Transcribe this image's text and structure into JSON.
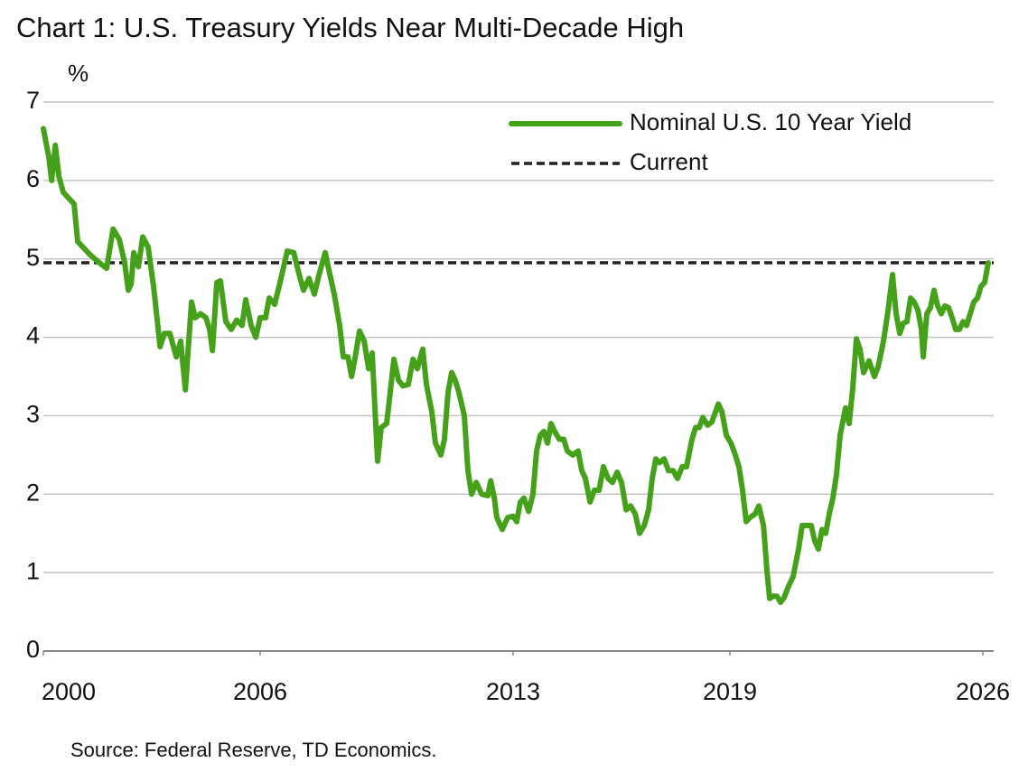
{
  "chart_data": {
    "type": "line",
    "title": "Chart 1: U.S. Treasury Yields Near Multi-Decade High",
    "y_label": "%",
    "source": "Source: Federal Reserve, TD Economics.",
    "xlim": [
      2000,
      2026.3
    ],
    "xticks": [
      2000,
      2006,
      2013,
      2019,
      2026
    ],
    "ylim": [
      0,
      7
    ],
    "yticks": [
      0,
      1,
      2,
      3,
      4,
      5,
      6,
      7
    ],
    "grid": true,
    "legend": "upper right",
    "series": [
      {
        "name": "Nominal U.S. 10 Year Yield",
        "color": "#45a01a",
        "x": [
          2000.0,
          2000.15,
          2000.23,
          2000.33,
          2000.43,
          2000.55,
          2000.75,
          2000.85,
          2000.95,
          2001.3,
          2001.55,
          2001.75,
          2001.93,
          2002.1,
          2002.25,
          2002.35,
          2002.43,
          2002.5,
          2002.63,
          2002.75,
          2002.9,
          2003.05,
          2003.23,
          2003.35,
          2003.5,
          2003.68,
          2003.8,
          2003.93,
          2004.1,
          2004.2,
          2004.35,
          2004.5,
          2004.6,
          2004.68,
          2004.8,
          2004.9,
          2005.05,
          2005.2,
          2005.35,
          2005.5,
          2005.6,
          2005.75,
          2005.88,
          2006.0,
          2006.15,
          2006.25,
          2006.4,
          2006.55,
          2006.75,
          2006.93,
          2007.05,
          2007.2,
          2007.35,
          2007.5,
          2007.63,
          2007.8,
          2007.93,
          2008.05,
          2008.2,
          2008.3,
          2008.43,
          2008.53,
          2008.63,
          2008.75,
          2008.88,
          2009.0,
          2009.1,
          2009.25,
          2009.35,
          2009.5,
          2009.6,
          2009.7,
          2009.83,
          2009.95,
          2010.1,
          2010.23,
          2010.35,
          2010.5,
          2010.6,
          2010.75,
          2010.85,
          2011.0,
          2011.1,
          2011.2,
          2011.3,
          2011.4,
          2011.5,
          2011.65,
          2011.75,
          2011.85,
          2011.98,
          2012.13,
          2012.3,
          2012.38,
          2012.48,
          2012.55,
          2012.7,
          2012.85,
          2013.0,
          2013.1,
          2013.2,
          2013.3,
          2013.43,
          2013.55,
          2013.65,
          2013.75,
          2013.85,
          2013.95,
          2014.05,
          2014.15,
          2014.28,
          2014.4,
          2014.5,
          2014.65,
          2014.8,
          2014.9,
          2015.0,
          2015.13,
          2015.25,
          2015.38,
          2015.5,
          2015.63,
          2015.75,
          2015.88,
          2016.0,
          2016.13,
          2016.25,
          2016.38,
          2016.5,
          2016.63,
          2016.75,
          2016.85,
          2016.95,
          2017.05,
          2017.18,
          2017.3,
          2017.43,
          2017.55,
          2017.68,
          2017.8,
          2017.95,
          2018.05,
          2018.15,
          2018.25,
          2018.38,
          2018.5,
          2018.68,
          2018.78,
          2018.9,
          2019.03,
          2019.15,
          2019.25,
          2019.35,
          2019.45,
          2019.55,
          2019.7,
          2019.8,
          2019.93,
          2020.03,
          2020.1,
          2020.2,
          2020.3,
          2020.4,
          2020.5,
          2020.6,
          2020.75,
          2020.9,
          2021.0,
          2021.15,
          2021.25,
          2021.35,
          2021.45,
          2021.55,
          2021.65,
          2021.75,
          2021.85,
          2021.95,
          2022.05,
          2022.2,
          2022.3,
          2022.4,
          2022.5,
          2022.6,
          2022.7,
          2022.85,
          2023.0,
          2023.1,
          2023.25,
          2023.38,
          2023.5,
          2023.6,
          2023.7,
          2023.8,
          2023.9,
          2024.0,
          2024.1,
          2024.2,
          2024.3,
          2024.35,
          2024.45,
          2024.55,
          2024.65,
          2024.75,
          2024.85,
          2024.95,
          2025.05,
          2025.15,
          2025.25,
          2025.35,
          2025.45,
          2025.55,
          2025.65,
          2025.75,
          2025.85,
          2025.95,
          2026.05,
          2026.15
        ],
        "values": [
          6.66,
          6.3,
          6.0,
          6.45,
          6.05,
          5.85,
          5.75,
          5.7,
          5.22,
          5.05,
          4.95,
          4.88,
          5.38,
          5.25,
          4.95,
          4.6,
          4.68,
          5.08,
          4.9,
          5.28,
          5.15,
          4.65,
          3.88,
          4.05,
          4.05,
          3.75,
          3.95,
          3.33,
          4.45,
          4.25,
          4.3,
          4.25,
          4.1,
          3.83,
          4.7,
          4.72,
          4.2,
          4.1,
          4.22,
          4.15,
          4.48,
          4.15,
          4.0,
          4.25,
          4.25,
          4.5,
          4.42,
          4.7,
          5.1,
          5.08,
          4.85,
          4.6,
          4.75,
          4.55,
          4.8,
          5.08,
          4.8,
          4.55,
          4.15,
          3.75,
          3.75,
          3.5,
          3.75,
          4.08,
          3.95,
          3.6,
          3.8,
          2.42,
          2.85,
          2.9,
          3.3,
          3.72,
          3.45,
          3.38,
          3.4,
          3.72,
          3.6,
          3.85,
          3.4,
          3.05,
          2.65,
          2.5,
          2.7,
          3.3,
          3.55,
          3.45,
          3.3,
          3.0,
          2.3,
          2.0,
          2.15,
          2.0,
          1.98,
          2.17,
          1.95,
          1.7,
          1.55,
          1.7,
          1.72,
          1.65,
          1.9,
          1.95,
          1.78,
          2.0,
          2.55,
          2.75,
          2.8,
          2.65,
          2.9,
          2.8,
          2.7,
          2.7,
          2.55,
          2.5,
          2.55,
          2.3,
          2.2,
          1.9,
          2.05,
          2.05,
          2.35,
          2.2,
          2.15,
          2.28,
          2.15,
          1.8,
          1.85,
          1.75,
          1.5,
          1.6,
          1.8,
          2.2,
          2.45,
          2.4,
          2.45,
          2.3,
          2.3,
          2.2,
          2.35,
          2.35,
          2.7,
          2.85,
          2.85,
          2.98,
          2.88,
          2.92,
          3.15,
          3.05,
          2.75,
          2.65,
          2.5,
          2.35,
          2.05,
          1.65,
          1.7,
          1.75,
          1.85,
          1.6,
          1.0,
          0.67,
          0.7,
          0.7,
          0.62,
          0.68,
          0.8,
          0.95,
          1.3,
          1.6,
          1.6,
          1.6,
          1.4,
          1.3,
          1.55,
          1.5,
          1.75,
          1.95,
          2.25,
          2.75,
          3.1,
          2.9,
          3.35,
          3.98,
          3.85,
          3.55,
          3.7,
          3.5,
          3.62,
          3.95,
          4.35,
          4.8,
          4.3,
          4.05,
          4.18,
          4.2,
          4.5,
          4.45,
          4.35,
          4.1,
          3.75,
          4.3,
          4.38,
          4.6,
          4.4,
          4.3,
          4.4,
          4.38,
          4.25,
          4.1,
          4.1,
          4.2,
          4.15,
          4.3,
          4.45,
          4.5,
          4.65,
          4.7,
          4.95
        ]
      }
    ],
    "hlines": [
      {
        "name": "Current",
        "value": 4.95,
        "color": "#222222",
        "dashed": true
      }
    ]
  }
}
